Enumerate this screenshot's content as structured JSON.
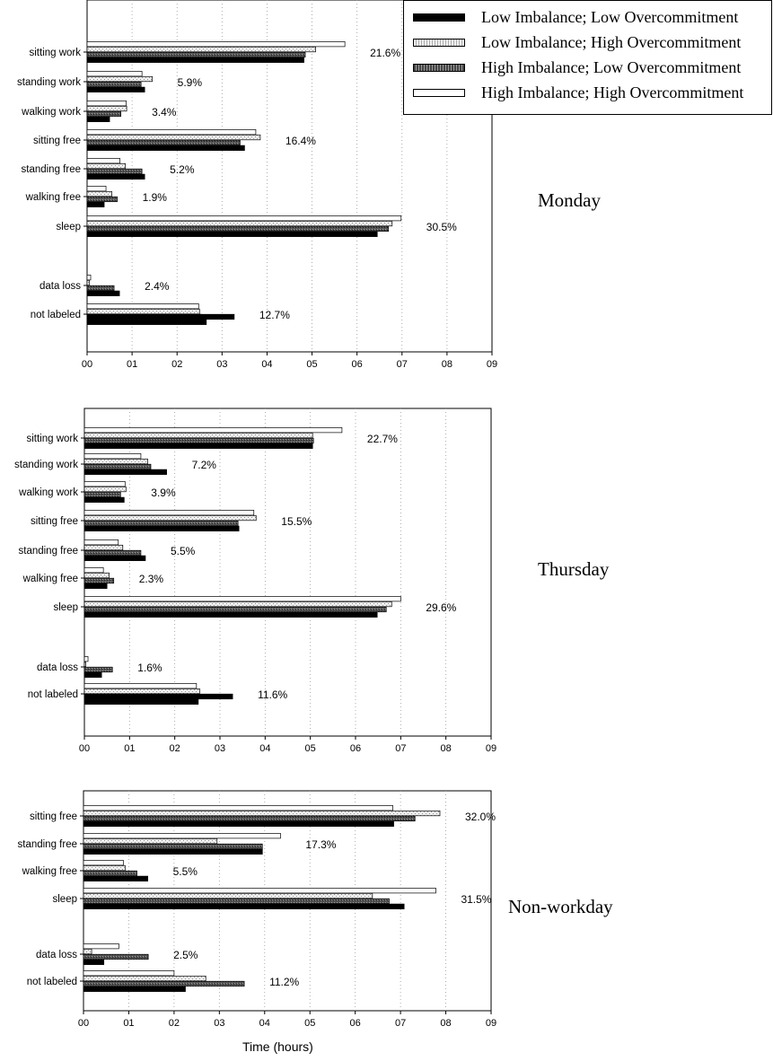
{
  "legend": [
    {
      "name": "Low Imbalance; Low Overcommitment",
      "pattern": "solid-black"
    },
    {
      "name": "Low Imbalance; High Overcommitment",
      "pattern": "light-dotted"
    },
    {
      "name": "High Imbalance; Low Overcommitment",
      "pattern": "dark-dotted"
    },
    {
      "name": "High Imbalance; High Overcommitment",
      "pattern": "white"
    }
  ],
  "x_axis_title": "Time (hours)",
  "chart_data": [
    {
      "type": "bar",
      "orientation": "horizontal",
      "panel_label": "Monday",
      "xlabel": "Time (hours)",
      "xlim": [
        0,
        9
      ],
      "x_tick_labels": [
        "00",
        "01",
        "02",
        "03",
        "04",
        "05",
        "06",
        "07",
        "08",
        "09"
      ],
      "categories": [
        "sitting work",
        "standing work",
        "walking work",
        "sitting free",
        "standing free",
        "walking free",
        "sleep",
        "",
        "data loss",
        "not labeled"
      ],
      "percent_labels": [
        "21.6%",
        "5.9%",
        "3.4%",
        "16.4%",
        "5.2%",
        "1.9%",
        "30.5%",
        "",
        "2.4%",
        "12.7%"
      ],
      "series": [
        {
          "name": "High Imbalance; High Overcommitment",
          "values": [
            5.73,
            1.22,
            0.87,
            3.75,
            0.73,
            0.42,
            6.98,
            null,
            0.08,
            2.48
          ]
        },
        {
          "name": "Low Imbalance; High Overcommitment",
          "values": [
            5.08,
            1.45,
            0.88,
            3.85,
            0.85,
            0.55,
            6.78,
            null,
            0.05,
            2.5
          ]
        },
        {
          "name": "High Imbalance; Low Overcommitment",
          "values": [
            4.85,
            1.2,
            0.75,
            3.4,
            1.22,
            0.67,
            6.7,
            null,
            0.6,
            2.55
          ]
        },
        {
          "name": "Low Imbalance; Low Overcommitment",
          "values": [
            4.82,
            1.28,
            0.5,
            3.5,
            1.28,
            0.38,
            6.45,
            null,
            0.72,
            2.65
          ]
        }
      ],
      "highlight_bars": [
        [
          9,
          2,
          3.27
        ]
      ]
    },
    {
      "type": "bar",
      "orientation": "horizontal",
      "panel_label": "Thursday",
      "xlabel": "Time (hours)",
      "xlim": [
        0,
        9
      ],
      "x_tick_labels": [
        "00",
        "01",
        "02",
        "03",
        "04",
        "05",
        "06",
        "07",
        "08",
        "09"
      ],
      "categories": [
        "sitting work",
        "standing work",
        "walking work",
        "sitting free",
        "standing free",
        "walking free",
        "sleep",
        "",
        "data loss",
        "not labeled"
      ],
      "percent_labels": [
        "22.7%",
        "7.2%",
        "3.9%",
        "15.5%",
        "5.5%",
        "2.3%",
        "29.6%",
        "",
        "1.6%",
        "11.6%"
      ],
      "series": [
        {
          "name": "High Imbalance; High Overcommitment",
          "values": [
            5.7,
            1.25,
            0.9,
            3.75,
            0.75,
            0.42,
            7.0,
            null,
            0.08,
            2.48
          ]
        },
        {
          "name": "Low Imbalance; High Overcommitment",
          "values": [
            5.05,
            1.4,
            0.92,
            3.8,
            0.85,
            0.55,
            6.8,
            null,
            0.03,
            2.55
          ]
        },
        {
          "name": "High Imbalance; Low Overcommitment",
          "values": [
            5.07,
            1.47,
            0.8,
            3.4,
            1.25,
            0.65,
            6.68,
            null,
            0.62,
            2.55
          ]
        },
        {
          "name": "Low Imbalance; Low Overcommitment",
          "values": [
            5.05,
            1.82,
            0.88,
            3.42,
            1.35,
            0.5,
            6.48,
            null,
            0.38,
            2.52
          ]
        }
      ],
      "highlight_bars": [
        [
          9,
          2,
          3.28
        ]
      ]
    },
    {
      "type": "bar",
      "orientation": "horizontal",
      "panel_label": "Non-workday",
      "xlabel": "Time (hours)",
      "xlim": [
        0,
        9
      ],
      "x_tick_labels": [
        "00",
        "01",
        "02",
        "03",
        "04",
        "05",
        "06",
        "07",
        "08",
        "09"
      ],
      "categories": [
        "sitting free",
        "standing free",
        "walking free",
        "sleep",
        "",
        "data loss",
        "not labeled"
      ],
      "percent_labels": [
        "32.0%",
        "17.3%",
        "5.5%",
        "31.5%",
        "",
        "2.5%",
        "11.2%"
      ],
      "series": [
        {
          "name": "High Imbalance; High Overcommitment",
          "values": [
            6.83,
            4.35,
            0.88,
            7.78,
            null,
            0.78,
            2.0
          ]
        },
        {
          "name": "Low Imbalance; High Overcommitment",
          "values": [
            7.87,
            2.95,
            0.92,
            6.38,
            null,
            0.18,
            2.7
          ]
        },
        {
          "name": "High Imbalance; Low Overcommitment",
          "values": [
            7.32,
            3.95,
            1.18,
            6.75,
            null,
            1.43,
            3.55
          ]
        },
        {
          "name": "Low Imbalance; Low Overcommitment",
          "values": [
            6.85,
            3.95,
            1.42,
            7.08,
            null,
            0.45,
            2.25
          ]
        }
      ]
    }
  ]
}
